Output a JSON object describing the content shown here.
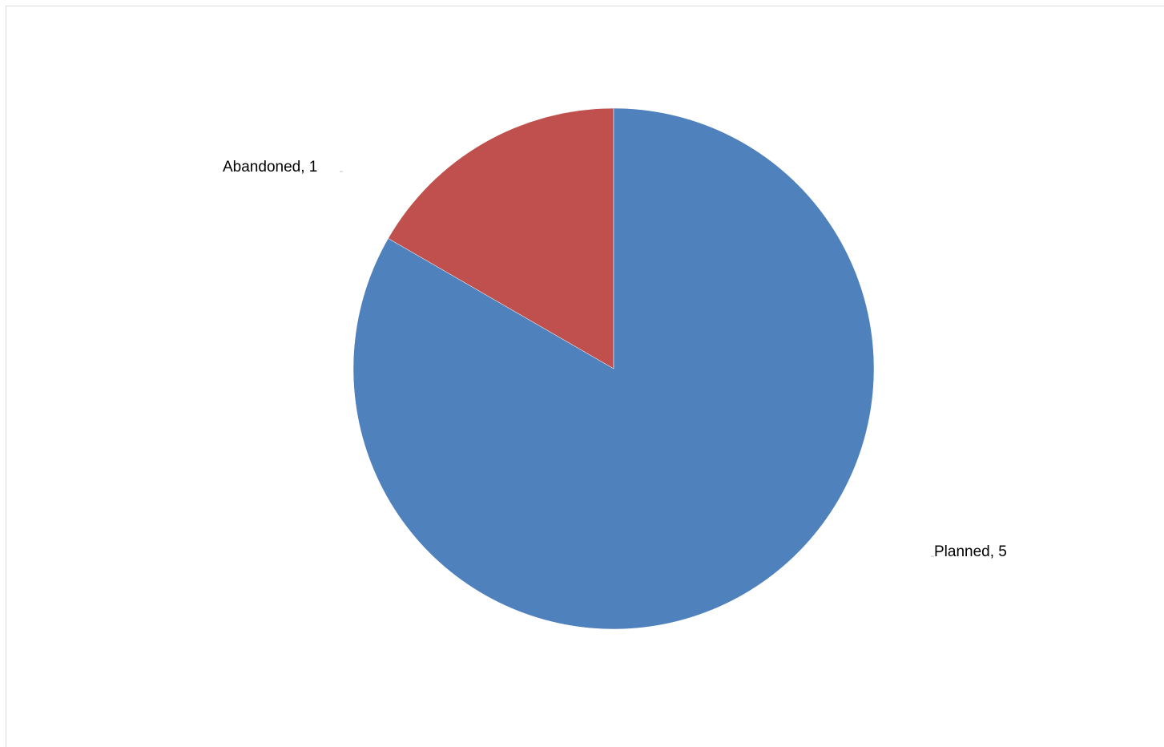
{
  "chart_data": {
    "type": "pie",
    "title": "",
    "slices": [
      {
        "label": "Abandoned",
        "value": 1,
        "color": "#c0504d",
        "data_label": "Abandoned, 1"
      },
      {
        "label": "Planned",
        "value": 5,
        "color": "#4f81bd",
        "data_label": "Planned, 5"
      }
    ],
    "start_angle_deg": 0,
    "direction": "counterclockwise-from-top",
    "legend": "none"
  }
}
